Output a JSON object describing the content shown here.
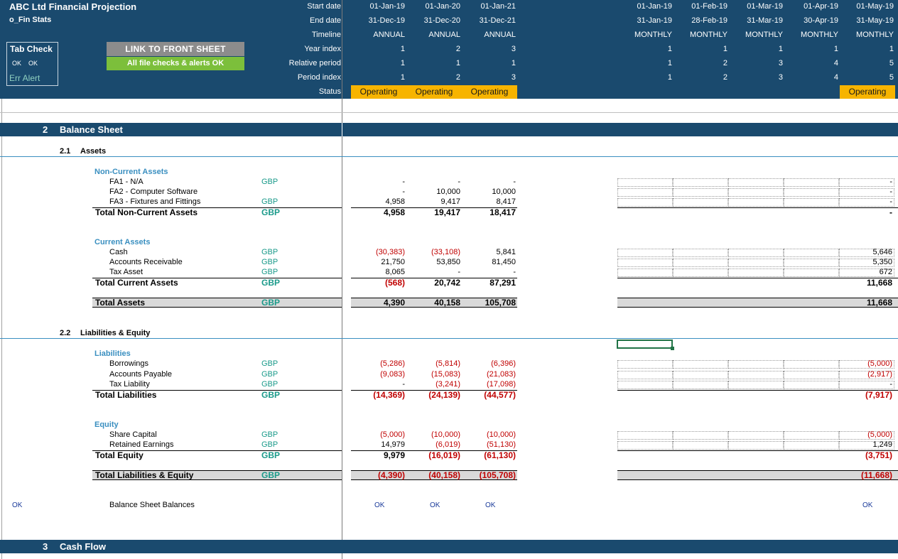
{
  "header": {
    "title": "ABC Ltd Financial Projection",
    "sheet": "o_Fin Stats",
    "row_labels": [
      "Start date",
      "End date",
      "Timeline",
      "Year index",
      "Relative period",
      "Period index",
      "Status"
    ],
    "annual": [
      {
        "start": "01-Jan-19",
        "end": "31-Dec-19",
        "timeline": "ANNUAL",
        "year": "1",
        "rel": "1",
        "period": "1",
        "status": "Operating"
      },
      {
        "start": "01-Jan-20",
        "end": "31-Dec-20",
        "timeline": "ANNUAL",
        "year": "2",
        "rel": "1",
        "period": "2",
        "status": "Operating"
      },
      {
        "start": "01-Jan-21",
        "end": "31-Dec-21",
        "timeline": "ANNUAL",
        "year": "3",
        "rel": "1",
        "period": "3",
        "status": "Operating"
      }
    ],
    "monthly": [
      {
        "start": "01-Jan-19",
        "end": "31-Jan-19",
        "timeline": "MONTHLY",
        "year": "1",
        "rel": "1",
        "period": "1",
        "status": ""
      },
      {
        "start": "01-Feb-19",
        "end": "28-Feb-19",
        "timeline": "MONTHLY",
        "year": "1",
        "rel": "2",
        "period": "2",
        "status": ""
      },
      {
        "start": "01-Mar-19",
        "end": "31-Mar-19",
        "timeline": "MONTHLY",
        "year": "1",
        "rel": "3",
        "period": "3",
        "status": ""
      },
      {
        "start": "01-Apr-19",
        "end": "30-Apr-19",
        "timeline": "MONTHLY",
        "year": "1",
        "rel": "4",
        "period": "4",
        "status": ""
      },
      {
        "start": "01-May-19",
        "end": "31-May-19",
        "timeline": "MONTHLY",
        "year": "1",
        "rel": "5",
        "period": "5",
        "status": "Operating"
      }
    ],
    "tab_check": {
      "label": "Tab Check",
      "ok1": "OK",
      "ok2": "OK",
      "err": "Err Alert"
    },
    "link_button": "LINK TO FRONT SHEET",
    "checks_button": "All file checks & alerts OK"
  },
  "sections": {
    "bs": {
      "num": "2",
      "title": "Balance Sheet"
    },
    "cf": {
      "num": "3",
      "title": "Cash Flow"
    }
  },
  "assets": {
    "num": "2.1",
    "title": "Assets",
    "nca_title": "Non-Current Assets",
    "nca_rows": [
      {
        "label": "FA1 - N/A",
        "unit": "GBP",
        "a": [
          "-",
          "-",
          "-"
        ],
        "m5": "-"
      },
      {
        "label": "FA2 - Computer Software",
        "unit": "",
        "a": [
          "-",
          "10,000",
          "10,000"
        ],
        "m5": "-"
      },
      {
        "label": "FA3 - Fixtures and Fittings",
        "unit": "GBP",
        "a": [
          "4,958",
          "9,417",
          "8,417"
        ],
        "m5": "-"
      }
    ],
    "nca_total": {
      "label": "Total Non-Current Assets",
      "unit": "GBP",
      "a": [
        "4,958",
        "19,417",
        "18,417"
      ],
      "m5": "-"
    },
    "ca_title": "Current Assets",
    "ca_rows": [
      {
        "label": "Cash",
        "unit": "GBP",
        "a": [
          "(30,383)",
          "(33,108)",
          "5,841"
        ],
        "m5": "5,646"
      },
      {
        "label": "Accounts Receivable",
        "unit": "GBP",
        "a": [
          "21,750",
          "53,850",
          "81,450"
        ],
        "m5": "5,350"
      },
      {
        "label": "Tax Asset",
        "unit": "GBP",
        "a": [
          "8,065",
          "-",
          "-"
        ],
        "m5": "672"
      }
    ],
    "ca_total": {
      "label": "Total Current Assets",
      "unit": "GBP",
      "a": [
        "(568)",
        "20,742",
        "87,291"
      ],
      "m5": "11,668"
    },
    "total": {
      "label": "Total Assets",
      "unit": "GBP",
      "a": [
        "4,390",
        "40,158",
        "105,708"
      ],
      "m5": "11,668"
    }
  },
  "liab": {
    "num": "2.2",
    "title": "Liabilities & Equity",
    "l_title": "Liabilities",
    "l_rows": [
      {
        "label": "Borrowings",
        "unit": "GBP",
        "a": [
          "(5,286)",
          "(5,814)",
          "(6,396)"
        ],
        "m5": "(5,000)"
      },
      {
        "label": "Accounts Payable",
        "unit": "GBP",
        "a": [
          "(9,083)",
          "(15,083)",
          "(21,083)"
        ],
        "m5": "(2,917)"
      },
      {
        "label": "Tax Liability",
        "unit": "GBP",
        "a": [
          "-",
          "(3,241)",
          "(17,098)"
        ],
        "m5": "-"
      }
    ],
    "l_total": {
      "label": "Total Liabilities",
      "unit": "GBP",
      "a": [
        "(14,369)",
        "(24,139)",
        "(44,577)"
      ],
      "m5": "(7,917)"
    },
    "e_title": "Equity",
    "e_rows": [
      {
        "label": "Share Capital",
        "unit": "GBP",
        "a": [
          "(5,000)",
          "(10,000)",
          "(10,000)"
        ],
        "m5": "(5,000)"
      },
      {
        "label": "Retained Earnings",
        "unit": "GBP",
        "a": [
          "14,979",
          "(6,019)",
          "(51,130)"
        ],
        "m5": "1,249"
      }
    ],
    "e_total": {
      "label": "Total Equity",
      "unit": "GBP",
      "a": [
        "9,979",
        "(16,019)",
        "(61,130)"
      ],
      "m5": "(3,751)"
    },
    "total": {
      "label": "Total Liabilities & Equity",
      "unit": "GBP",
      "a": [
        "(4,390)",
        "(40,158)",
        "(105,708)"
      ],
      "m5": "(11,668)"
    }
  },
  "check": {
    "left_ok": "OK",
    "label": "Balance Sheet Balances",
    "a": [
      "OK",
      "OK",
      "OK"
    ],
    "m5": "OK"
  }
}
